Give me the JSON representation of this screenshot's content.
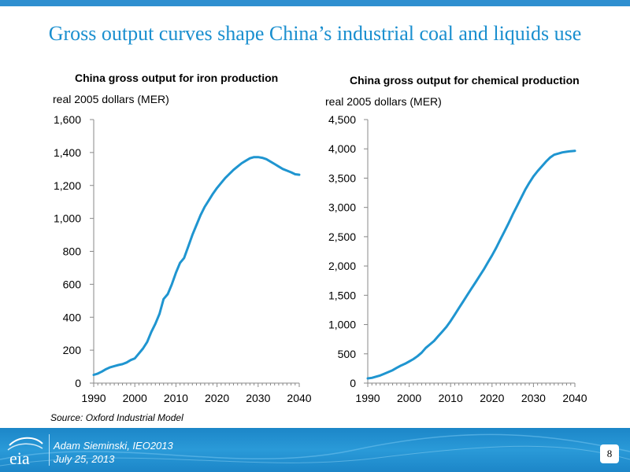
{
  "slide": {
    "title": "Gross output curves shape China’s industrial coal and liquids use",
    "source": "Source:  Oxford Industrial Model",
    "presenter": "Adam Sieminski, IEO2013",
    "date": "July 25, 2013",
    "page_number": "8",
    "logo_text": "eia",
    "accent_color": "#1a8fcf",
    "line_color": "#1f95d0"
  },
  "chart_data": [
    {
      "type": "line",
      "title": "China gross output for iron production",
      "ylabel": "real 2005 dollars (MER)",
      "xlabel": "",
      "x_ticks": [
        "1990",
        "2000",
        "2010",
        "2020",
        "2030",
        "2040"
      ],
      "y_ticks": [
        "0",
        "200",
        "400",
        "600",
        "800",
        "1,000",
        "1,200",
        "1,400",
        "1,600"
      ],
      "xlim": [
        1990,
        2040
      ],
      "ylim": [
        0,
        1600
      ],
      "grid": false,
      "series": [
        {
          "x": [
            1990,
            1991,
            1992,
            1993,
            1994,
            1995,
            1996,
            1997,
            1998,
            1999,
            2000,
            2001,
            2002,
            2003,
            2004,
            2005,
            2006,
            2007,
            2008,
            2009,
            2010,
            2011,
            2012,
            2013,
            2014,
            2015,
            2016,
            2017,
            2018,
            2019,
            2020,
            2021,
            2022,
            2023,
            2024,
            2025,
            2026,
            2027,
            2028,
            2029,
            2030,
            2031,
            2032,
            2033,
            2034,
            2035,
            2036,
            2037,
            2038,
            2039,
            2040
          ],
          "values": [
            50,
            58,
            70,
            85,
            96,
            103,
            110,
            115,
            125,
            140,
            150,
            180,
            210,
            250,
            310,
            360,
            420,
            510,
            540,
            600,
            670,
            730,
            760,
            830,
            900,
            960,
            1020,
            1070,
            1110,
            1150,
            1185,
            1215,
            1245,
            1270,
            1295,
            1315,
            1335,
            1350,
            1365,
            1372,
            1372,
            1368,
            1360,
            1345,
            1330,
            1315,
            1300,
            1290,
            1280,
            1268,
            1265
          ]
        }
      ]
    },
    {
      "type": "line",
      "title": "China gross output for chemical production",
      "ylabel": "real 2005 dollars (MER)",
      "xlabel": "",
      "x_ticks": [
        "1990",
        "2000",
        "2010",
        "2020",
        "2030",
        "2040"
      ],
      "y_ticks": [
        "0",
        "500",
        "1,000",
        "1,500",
        "2,000",
        "2,500",
        "3,000",
        "3,500",
        "4,000",
        "4,500"
      ],
      "xlim": [
        1990,
        2040
      ],
      "ylim": [
        0,
        4500
      ],
      "grid": false,
      "series": [
        {
          "x": [
            1990,
            1991,
            1992,
            1993,
            1994,
            1995,
            1996,
            1997,
            1998,
            1999,
            2000,
            2001,
            2002,
            2003,
            2004,
            2005,
            2006,
            2007,
            2008,
            2009,
            2010,
            2011,
            2012,
            2013,
            2014,
            2015,
            2016,
            2017,
            2018,
            2019,
            2020,
            2021,
            2022,
            2023,
            2024,
            2025,
            2026,
            2027,
            2028,
            2029,
            2030,
            2031,
            2032,
            2033,
            2034,
            2035,
            2036,
            2037,
            2038,
            2039,
            2040
          ],
          "values": [
            80,
            90,
            110,
            130,
            160,
            190,
            220,
            260,
            300,
            330,
            370,
            410,
            460,
            520,
            600,
            660,
            720,
            800,
            880,
            960,
            1060,
            1170,
            1280,
            1390,
            1500,
            1610,
            1720,
            1830,
            1940,
            2060,
            2180,
            2310,
            2450,
            2590,
            2730,
            2880,
            3020,
            3160,
            3300,
            3420,
            3530,
            3620,
            3700,
            3780,
            3850,
            3900,
            3920,
            3940,
            3950,
            3960,
            3965
          ]
        }
      ]
    }
  ]
}
